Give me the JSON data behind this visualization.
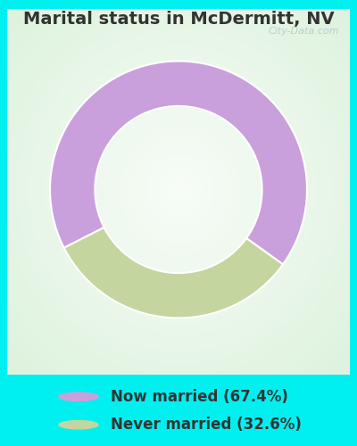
{
  "title": "Marital status in McDermitt, NV",
  "slices": [
    67.4,
    32.6
  ],
  "labels": [
    "Now married (67.4%)",
    "Never married (32.6%)"
  ],
  "colors": [
    "#c9a0dc",
    "#c5d5a0"
  ],
  "legend_marker_colors": [
    "#c9a0dc",
    "#c5d5a0"
  ],
  "background_color_outer": "#00f0f0",
  "background_color_chart": "#e8f5ee",
  "donut_width": 0.35,
  "startangle": 207,
  "title_fontsize": 14,
  "legend_fontsize": 12,
  "watermark": "City-Data.com"
}
